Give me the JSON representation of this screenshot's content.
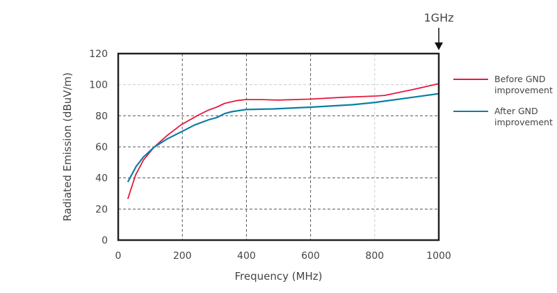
{
  "chart_data": {
    "type": "line",
    "title": "",
    "xlabel": "Frequency (MHz)",
    "ylabel": "Radiated Emission (dBuV/m)",
    "xlim": [
      0,
      1000
    ],
    "ylim": [
      0,
      120
    ],
    "xticks": [
      0,
      200,
      400,
      600,
      800,
      1000
    ],
    "yticks": [
      0,
      20,
      40,
      60,
      80,
      100,
      120
    ],
    "grid": true,
    "legend_position": "right",
    "annotation": "1GHz",
    "annotation_x": 1000,
    "series": [
      {
        "name": "Before GND improvement",
        "color": "#e8173f",
        "x": [
          30,
          54,
          79,
          112,
          152,
          195,
          246,
          282,
          307,
          332,
          368,
          397,
          448,
          499,
          600,
          701,
          802,
          831,
          918,
          1000
        ],
        "y": [
          26.5,
          41.8,
          51.6,
          59.8,
          67.2,
          74,
          80,
          83.7,
          85.5,
          88,
          89.7,
          90.4,
          90.4,
          90.1,
          90.7,
          91.9,
          92.7,
          93.1,
          96.8,
          100.6
        ]
      },
      {
        "name": "After GND improvement",
        "color": "#0a7ea4",
        "x": [
          30,
          56,
          79,
          112,
          152,
          195,
          238,
          282,
          307,
          332,
          354,
          397,
          484,
          600,
          730,
          802,
          918,
          1000
        ],
        "y": [
          37.4,
          47.4,
          53.5,
          59.8,
          65,
          69.5,
          74,
          77.4,
          78.8,
          81.4,
          82.6,
          84,
          84.4,
          85.5,
          87.1,
          88.6,
          91.9,
          94.2
        ]
      }
    ]
  },
  "legend": {
    "items": [
      {
        "label_line1": "Before GND",
        "label_line2": "improvement",
        "color": "#e8173f"
      },
      {
        "label_line1": "After GND",
        "label_line2": "improvement",
        "color": "#0a7ea4"
      }
    ]
  }
}
